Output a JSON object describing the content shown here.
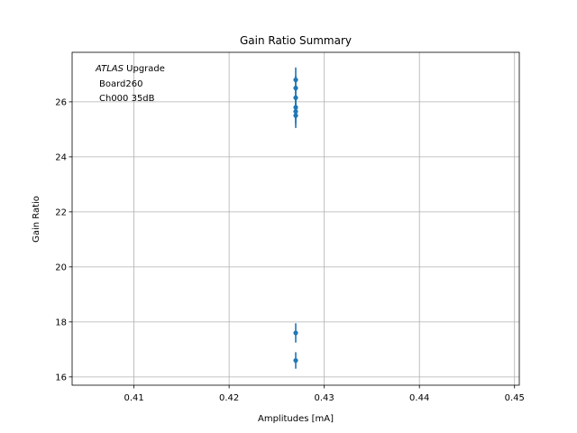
{
  "chart_data": {
    "type": "scatter",
    "title": "Gain Ratio Summary",
    "xlabel": "Amplitudes [mA]",
    "ylabel": "Gain Ratio",
    "xlim": [
      0.4035,
      0.4505
    ],
    "ylim": [
      15.7,
      27.8
    ],
    "xticks": [
      0.41,
      0.42,
      0.43,
      0.44,
      0.45
    ],
    "xtick_labels": [
      "0.41",
      "0.42",
      "0.43",
      "0.44",
      "0.45"
    ],
    "yticks": [
      16,
      18,
      20,
      22,
      24,
      26
    ],
    "ytick_labels": [
      "16",
      "18",
      "20",
      "22",
      "24",
      "26"
    ],
    "grid": true,
    "marker_color": "#1f77b4",
    "annotation": {
      "line1_italic": "ATLAS",
      "line1_rest": " Upgrade",
      "line2": "Board260",
      "line3": "Ch000 35dB"
    },
    "points": [
      {
        "x": 0.427,
        "y": 26.8,
        "yerr": 0.45
      },
      {
        "x": 0.427,
        "y": 26.5,
        "yerr": 0.45
      },
      {
        "x": 0.427,
        "y": 26.15,
        "yerr": 0.45
      },
      {
        "x": 0.427,
        "y": 25.8,
        "yerr": 0.45
      },
      {
        "x": 0.427,
        "y": 25.65,
        "yerr": 0.45
      },
      {
        "x": 0.427,
        "y": 25.5,
        "yerr": 0.45
      },
      {
        "x": 0.427,
        "y": 17.6,
        "yerr": 0.35
      },
      {
        "x": 0.427,
        "y": 16.6,
        "yerr": 0.3
      }
    ]
  }
}
